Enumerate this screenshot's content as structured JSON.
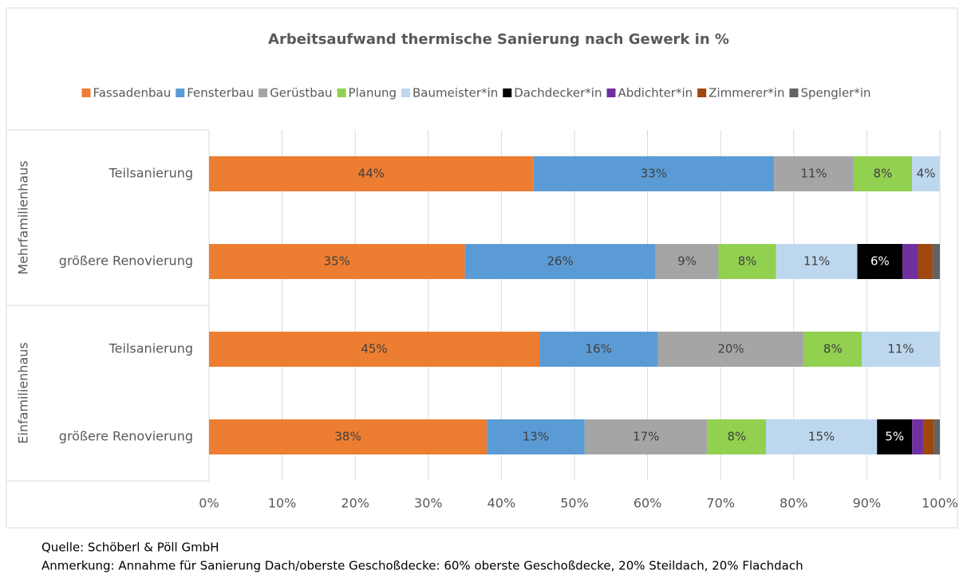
{
  "chart_data": {
    "type": "stacked_barh",
    "title": "Arbeitsaufwand thermische Sanierung nach Gewerk in %",
    "category_groups": [
      {
        "name": "Mehrfamilienhaus",
        "categories": [
          "Teilsanierung",
          "größere Renovierung"
        ]
      },
      {
        "name": "Einfamilienhaus",
        "categories": [
          "Teilsanierung",
          "größere Renovierung"
        ]
      }
    ],
    "series": [
      {
        "name": "Fassadenbau",
        "color": "#ed7d31",
        "values": [
          44.4,
          35.0,
          45.2,
          38.0
        ],
        "value_labels": [
          "44%",
          "35%",
          "45%",
          "38%"
        ]
      },
      {
        "name": "Fensterbau",
        "color": "#5b9bd5",
        "values": [
          32.9,
          26.1,
          16.2,
          13.4
        ],
        "value_labels": [
          "33%",
          "26%",
          "16%",
          "13%"
        ]
      },
      {
        "name": "Gerüstbau",
        "color": "#a5a5a5",
        "values": [
          10.9,
          8.6,
          20.0,
          16.8
        ],
        "value_labels": [
          "11%",
          "9%",
          "20%",
          "17%"
        ]
      },
      {
        "name": "Planung",
        "color": "#92d050",
        "values": [
          8.0,
          7.9,
          7.9,
          8.0
        ],
        "value_labels": [
          "8%",
          "8%",
          "8%",
          "8%"
        ]
      },
      {
        "name": "Baumeister*in",
        "color": "#bdd7ee",
        "values": [
          3.8,
          11.1,
          10.7,
          15.2
        ],
        "value_labels": [
          "4%",
          "11%",
          "11%",
          "15%"
        ]
      },
      {
        "name": "Dachdecker*in",
        "color": "#000000",
        "values": [
          0,
          6.2,
          0,
          4.8
        ],
        "value_labels": [
          null,
          "6%",
          null,
          "5%"
        ]
      },
      {
        "name": "Abdichter*in",
        "color": "#7030a0",
        "values": [
          0,
          2.1,
          0,
          1.5
        ],
        "value_labels": [
          null,
          null,
          null,
          null
        ]
      },
      {
        "name": "Zimmerer*in",
        "color": "#9e480e",
        "values": [
          0,
          2.0,
          0,
          1.5
        ],
        "value_labels": [
          null,
          null,
          null,
          null
        ]
      },
      {
        "name": "Spengler*in",
        "color": "#636363",
        "values": [
          0,
          1.0,
          0,
          0.8
        ],
        "value_labels": [
          null,
          null,
          null,
          null
        ]
      }
    ],
    "xlim": [
      0,
      100
    ],
    "xticks": [
      {
        "value": 0,
        "label": "0%"
      },
      {
        "value": 10,
        "label": "10%"
      },
      {
        "value": 20,
        "label": "20%"
      },
      {
        "value": 30,
        "label": "30%"
      },
      {
        "value": 40,
        "label": "40%"
      },
      {
        "value": 50,
        "label": "50%"
      },
      {
        "value": 60,
        "label": "60%"
      },
      {
        "value": 70,
        "label": "70%"
      },
      {
        "value": 80,
        "label": "80%"
      },
      {
        "value": 90,
        "label": "90%"
      },
      {
        "value": 100,
        "label": "100%"
      }
    ],
    "grid": true,
    "legend": "top",
    "source": "Quelle: Schöberl & Pöll GmbH",
    "note": "Anmerkung: Annahme für Sanierung Dach/oberste Geschoßdecke: 60% oberste Geschoßdecke, 20% Steildach, 20% Flachdach"
  }
}
